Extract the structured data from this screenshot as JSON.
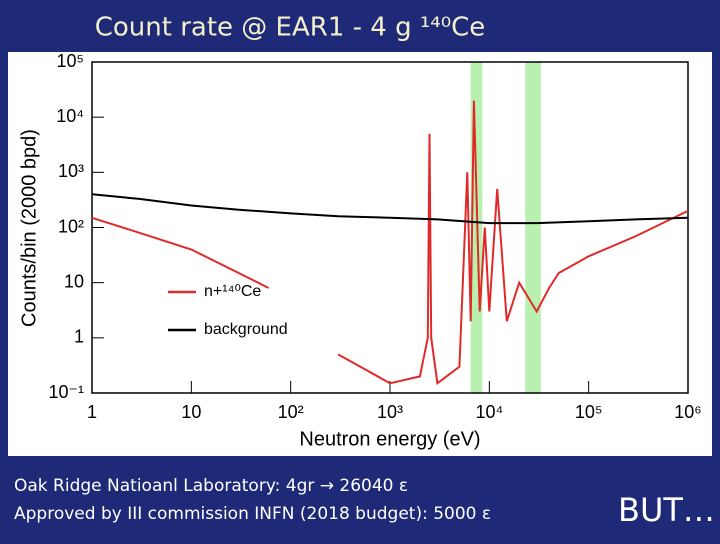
{
  "chart_data": {
    "type": "line",
    "title": "Count rate @ EAR1 - 4 g ¹⁴⁰Ce",
    "x_label": "Neutron energy (eV)",
    "y_label": "Counts/bin (2000 bpd)",
    "xlog": true,
    "ylog": true,
    "xlim": [
      1,
      1000000
    ],
    "ylim": [
      0.1,
      100000
    ],
    "xticks": [
      1,
      10,
      {
        "value": 100,
        "label": "10²"
      },
      {
        "value": 1000,
        "label": "10³"
      },
      {
        "value": 10000,
        "label": "10⁴"
      },
      {
        "value": 100000,
        "label": "10⁵"
      },
      {
        "value": 1000000,
        "label": "10⁶"
      }
    ],
    "yticks": [
      {
        "value": 0.1,
        "label": "10⁻¹"
      },
      1,
      10,
      {
        "value": 100,
        "label": "10²"
      },
      {
        "value": 1000,
        "label": "10³"
      },
      {
        "value": 10000,
        "label": "10⁴"
      },
      {
        "value": 100000,
        "label": "10⁵"
      }
    ],
    "highlight_ranges": [
      [
        6500,
        8500
      ],
      [
        23000,
        33000
      ]
    ],
    "highlight_color": "#b8f0b0",
    "series": [
      {
        "name": "n+¹⁴⁰Ce",
        "color": "#e02a2a",
        "x": [
          1,
          3,
          10,
          30,
          60,
          150,
          300,
          600,
          1000,
          2000,
          2400,
          2500,
          2600,
          3000,
          5000,
          6000,
          6500,
          7000,
          8000,
          9000,
          10000,
          12000,
          15000,
          20000,
          30000,
          40000,
          50000,
          100000,
          300000,
          1000000
        ],
        "values": [
          150,
          80,
          40,
          15,
          8,
          null,
          0.5,
          0.25,
          0.15,
          0.2,
          1,
          5000,
          1,
          0.15,
          0.3,
          1000,
          2,
          20000,
          3,
          100,
          3,
          500,
          2,
          10,
          3,
          8,
          15,
          30,
          70,
          200
        ]
      },
      {
        "name": "background",
        "color": "#000000",
        "x": [
          1,
          3,
          10,
          30,
          100,
          300,
          1000,
          3000,
          10000,
          30000,
          100000,
          300000,
          1000000
        ],
        "values": [
          400,
          330,
          250,
          210,
          180,
          160,
          150,
          140,
          120,
          120,
          130,
          140,
          150
        ]
      }
    ],
    "legend": "left"
  },
  "notes": [
    "Oak Ridge Natioanl Laboratory: 4gr → 26040 ε",
    "Approved by III commission INFN (2018 budget): 5000 ε"
  ],
  "footer": "BUT…"
}
